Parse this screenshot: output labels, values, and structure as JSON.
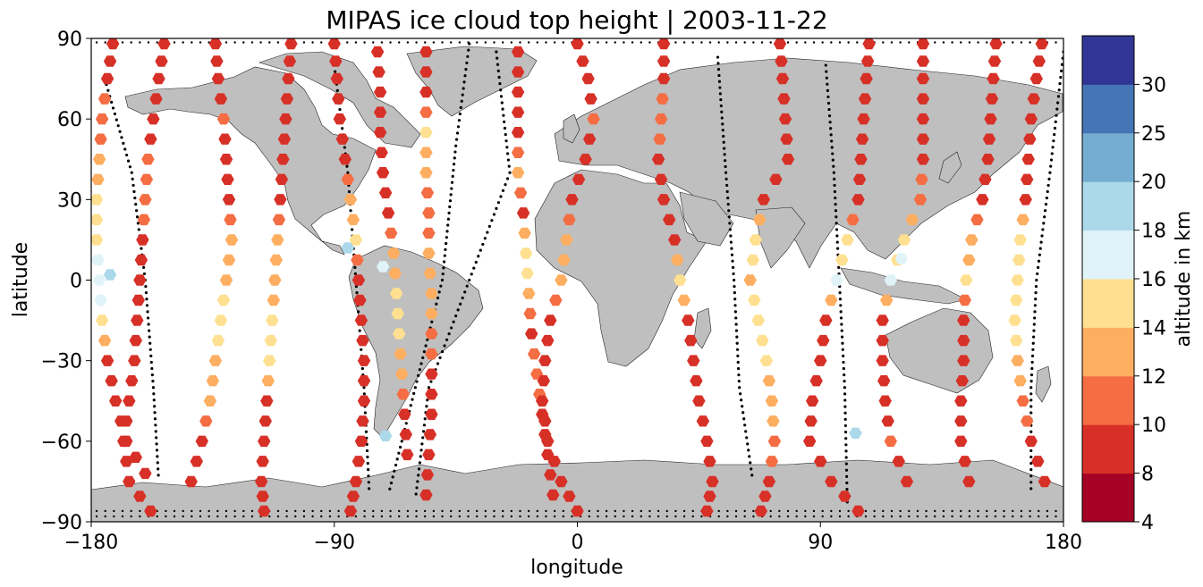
{
  "chart_data": {
    "type": "map-scatter",
    "title": "MIPAS ice cloud top height | 2003-11-22",
    "xlabel": "longitude",
    "ylabel": "latitude",
    "xlim": [
      -180,
      180
    ],
    "ylim": [
      -90,
      90
    ],
    "xticks": [
      -180,
      -90,
      0,
      90,
      180
    ],
    "yticks": [
      -90,
      -60,
      -30,
      0,
      30,
      60,
      90
    ],
    "xtick_labels": [
      "−180",
      "−90",
      "0",
      "90",
      "180"
    ],
    "ytick_labels": [
      "−90",
      "−60",
      "−30",
      "0",
      "30",
      "60",
      "90"
    ],
    "land_color": "#bfbfbf",
    "no_cloud_marker": "small black dot",
    "colorbar": {
      "label": "altitude in km",
      "bounds": [
        4,
        8,
        10,
        12,
        14,
        16,
        18,
        20,
        25,
        30
      ],
      "tick_labels": [
        "4",
        "8",
        "10",
        "12",
        "14",
        "16",
        "18",
        "20",
        "25",
        "30"
      ],
      "colors": [
        "#a50026",
        "#d73027",
        "#f46d43",
        "#fdae61",
        "#fee090",
        "#e0f3f8",
        "#abd9e9",
        "#74add1",
        "#4575b4",
        "#313695"
      ]
    },
    "tracks": [
      {
        "lat": [
          88,
          75,
          60,
          45,
          30,
          15,
          0,
          -15,
          -30,
          -45,
          -60,
          -72
        ],
        "lon": [
          -172,
          -174,
          -176,
          -177,
          -178,
          -178,
          -177,
          -176,
          -174,
          -171,
          -167,
          -160
        ],
        "h": [
          9,
          9,
          11,
          12,
          14,
          15,
          17,
          15,
          9,
          9,
          9,
          9
        ]
      },
      {
        "lat": [
          88,
          75,
          60,
          45,
          30,
          15,
          0,
          -15,
          -30,
          -45,
          -60,
          -75,
          -86
        ],
        "lon": [
          -153,
          -155,
          -157,
          -159,
          -160,
          -161,
          -162,
          -163,
          -164,
          -166,
          -168,
          -166,
          -158
        ],
        "h": [
          9,
          9,
          9,
          10,
          11,
          9,
          9,
          9,
          9,
          9,
          9,
          9,
          9
        ]
      },
      {
        "lat": [
          88,
          75,
          60,
          45,
          30,
          15,
          0,
          -15,
          -30,
          -45,
          -60,
          -75
        ],
        "lon": [
          -134,
          -133,
          -131,
          -130,
          -129,
          -128,
          -130,
          -132,
          -134,
          -136,
          -139,
          -143
        ],
        "h": [
          9,
          9,
          10,
          9,
          9,
          12,
          13,
          15,
          13,
          12,
          9,
          9
        ]
      },
      {
        "lat": [
          88,
          75,
          60,
          45,
          30,
          15,
          0,
          -15,
          -30,
          -45,
          -60,
          -75,
          -86
        ],
        "lon": [
          -106,
          -107,
          -108,
          -109,
          -110,
          -111,
          -112,
          -113,
          -114,
          -115,
          -116,
          -117,
          -116
        ],
        "h": [
          9,
          9,
          9,
          9,
          9,
          12,
          13,
          14,
          15,
          9,
          9,
          9,
          9
        ]
      },
      {
        "lat": [
          88,
          75,
          60,
          45,
          30,
          15,
          0,
          -15,
          -30,
          -45,
          -60,
          -75,
          -86
        ],
        "lon": [
          -90,
          -89,
          -88,
          -86,
          -84,
          -82,
          -81,
          -80,
          -79,
          -79,
          -80,
          -82,
          -84
        ],
        "h": [
          9,
          9,
          9,
          9,
          13,
          14,
          9,
          9,
          9,
          9,
          9,
          9,
          9
        ]
      },
      {
        "lat": [
          85,
          70,
          55,
          40,
          25,
          10,
          -5,
          -20,
          -35,
          -50,
          -65
        ],
        "lon": [
          -74,
          -73,
          -73,
          -72,
          -70,
          -68,
          -67,
          -66,
          -65,
          -64,
          -63
        ],
        "h": [
          9,
          9,
          9,
          9,
          9,
          12,
          15,
          14,
          13,
          9,
          9
        ]
      },
      {
        "lat": [
          85,
          70,
          55,
          40,
          25,
          10,
          -5,
          -20,
          -35,
          -50,
          -65,
          -80
        ],
        "lon": [
          -56,
          -56,
          -56,
          -56,
          -55,
          -55,
          -54,
          -54,
          -54,
          -54,
          -55,
          -56
        ],
        "h": [
          9,
          9,
          14,
          12,
          11,
          12,
          13,
          11,
          9,
          9,
          9,
          9
        ]
      },
      {
        "lat": [
          85,
          70,
          55,
          40,
          25,
          10,
          -5,
          -20,
          -35,
          -50,
          -65,
          -80
        ],
        "lon": [
          -22,
          -22,
          -22,
          -22,
          -20,
          -19,
          -18,
          -17,
          -15,
          -13,
          -11,
          -9
        ],
        "h": [
          9,
          9,
          9,
          13,
          9,
          15,
          13,
          9,
          11,
          9,
          9,
          9
        ]
      },
      {
        "lat": [
          88,
          75,
          60,
          45,
          30,
          15,
          0,
          -15,
          -30,
          -45,
          -60,
          -75,
          -86
        ],
        "lon": [
          0,
          4,
          6,
          3,
          -2,
          -4,
          -6,
          -10,
          -12,
          -13,
          -11,
          -6,
          0
        ],
        "h": [
          9,
          9,
          10,
          9,
          9,
          12,
          13,
          9,
          9,
          9,
          9,
          9,
          9
        ]
      },
      {
        "lat": [
          88,
          75,
          60,
          45,
          30,
          15,
          0,
          -15,
          -30,
          -45,
          -60,
          -75,
          -86
        ],
        "lon": [
          32,
          32,
          31,
          30,
          32,
          36,
          38,
          41,
          43,
          45,
          48,
          50,
          48
        ],
        "h": [
          9,
          9,
          11,
          9,
          9,
          9,
          15,
          9,
          9,
          9,
          9,
          9,
          9
        ]
      },
      {
        "lat": [
          88,
          75,
          60,
          45,
          30,
          15,
          0,
          -15,
          -30,
          -45,
          -60,
          -75,
          -86
        ],
        "lon": [
          75,
          76,
          77,
          78,
          69,
          66,
          64,
          67,
          70,
          72,
          73,
          71,
          68
        ],
        "h": [
          9,
          9,
          9,
          9,
          9,
          15,
          13,
          15,
          14,
          13,
          11,
          9,
          9
        ]
      },
      {
        "lat": [
          88,
          75,
          60,
          45,
          30,
          15,
          0,
          -15,
          -30,
          -45,
          -60,
          -75,
          -86
        ],
        "lon": [
          108,
          107,
          106,
          105,
          104,
          100,
          96,
          92,
          90,
          87,
          86,
          94,
          104
        ],
        "h": [
          9,
          9,
          9,
          9,
          9,
          14,
          17,
          9,
          9,
          9,
          9,
          9,
          9
        ]
      },
      {
        "lat": [
          88,
          75,
          60,
          45,
          30,
          15,
          0,
          -15,
          -30,
          -45,
          -60,
          -75
        ],
        "lon": [
          128,
          128,
          128,
          128,
          127,
          121,
          116,
          113,
          113,
          114,
          116,
          122
        ],
        "h": [
          9,
          9,
          9,
          9,
          11,
          14,
          17,
          9,
          9,
          9,
          10,
          9
        ]
      },
      {
        "lat": [
          88,
          75,
          60,
          45,
          30,
          15,
          0,
          -15,
          -30,
          -45,
          -60,
          -75
        ],
        "lon": [
          155,
          154,
          153,
          152,
          150,
          146,
          144,
          143,
          143,
          142,
          142,
          145
        ],
        "h": [
          9,
          9,
          9,
          9,
          9,
          13,
          14,
          9,
          9,
          9,
          9,
          9
        ]
      },
      {
        "lat": [
          88,
          75,
          60,
          45,
          30,
          15,
          0,
          -15,
          -30,
          -45,
          -60,
          -75
        ],
        "lon": [
          172,
          170,
          168,
          167,
          166,
          164,
          163,
          162,
          163,
          165,
          168,
          173
        ],
        "h": [
          9,
          9,
          9,
          9,
          9,
          15,
          14,
          15,
          13,
          11,
          9,
          9
        ]
      }
    ],
    "isolated_points": [
      {
        "lon": -173,
        "lat": 2,
        "h": 19
      },
      {
        "lon": -71,
        "lat": -58,
        "h": 19
      },
      {
        "lon": 103,
        "lat": -57,
        "h": 19
      },
      {
        "lon": -85,
        "lat": 12,
        "h": 18
      },
      {
        "lon": -72,
        "lat": 5,
        "h": 17
      },
      {
        "lon": 120,
        "lat": 8,
        "h": 17
      }
    ],
    "dotted_tracks": [
      {
        "lon": [
          -175,
          -165,
          -160,
          -157,
          -155
        ],
        "lat": [
          75,
          40,
          0,
          -40,
          -75
        ]
      },
      {
        "lon": [
          -90,
          -85,
          -82,
          -79,
          -77
        ],
        "lat": [
          80,
          40,
          0,
          -40,
          -80
        ]
      },
      {
        "lon": [
          -40,
          -45,
          -50,
          -60,
          -70
        ],
        "lat": [
          88,
          50,
          0,
          -40,
          -80
        ]
      },
      {
        "lon": [
          -30,
          -25,
          -40,
          -55,
          -60
        ],
        "lat": [
          85,
          40,
          0,
          -40,
          -82
        ]
      },
      {
        "lon": [
          52,
          55,
          58,
          60,
          65
        ],
        "lat": [
          83,
          40,
          0,
          -40,
          -75
        ]
      },
      {
        "lon": [
          92,
          95,
          97,
          99,
          100
        ],
        "lat": [
          80,
          40,
          0,
          -40,
          -85
        ]
      },
      {
        "lon": [
          180,
          175,
          170,
          168,
          168
        ],
        "lat": [
          85,
          40,
          0,
          -40,
          -80
        ]
      }
    ]
  }
}
